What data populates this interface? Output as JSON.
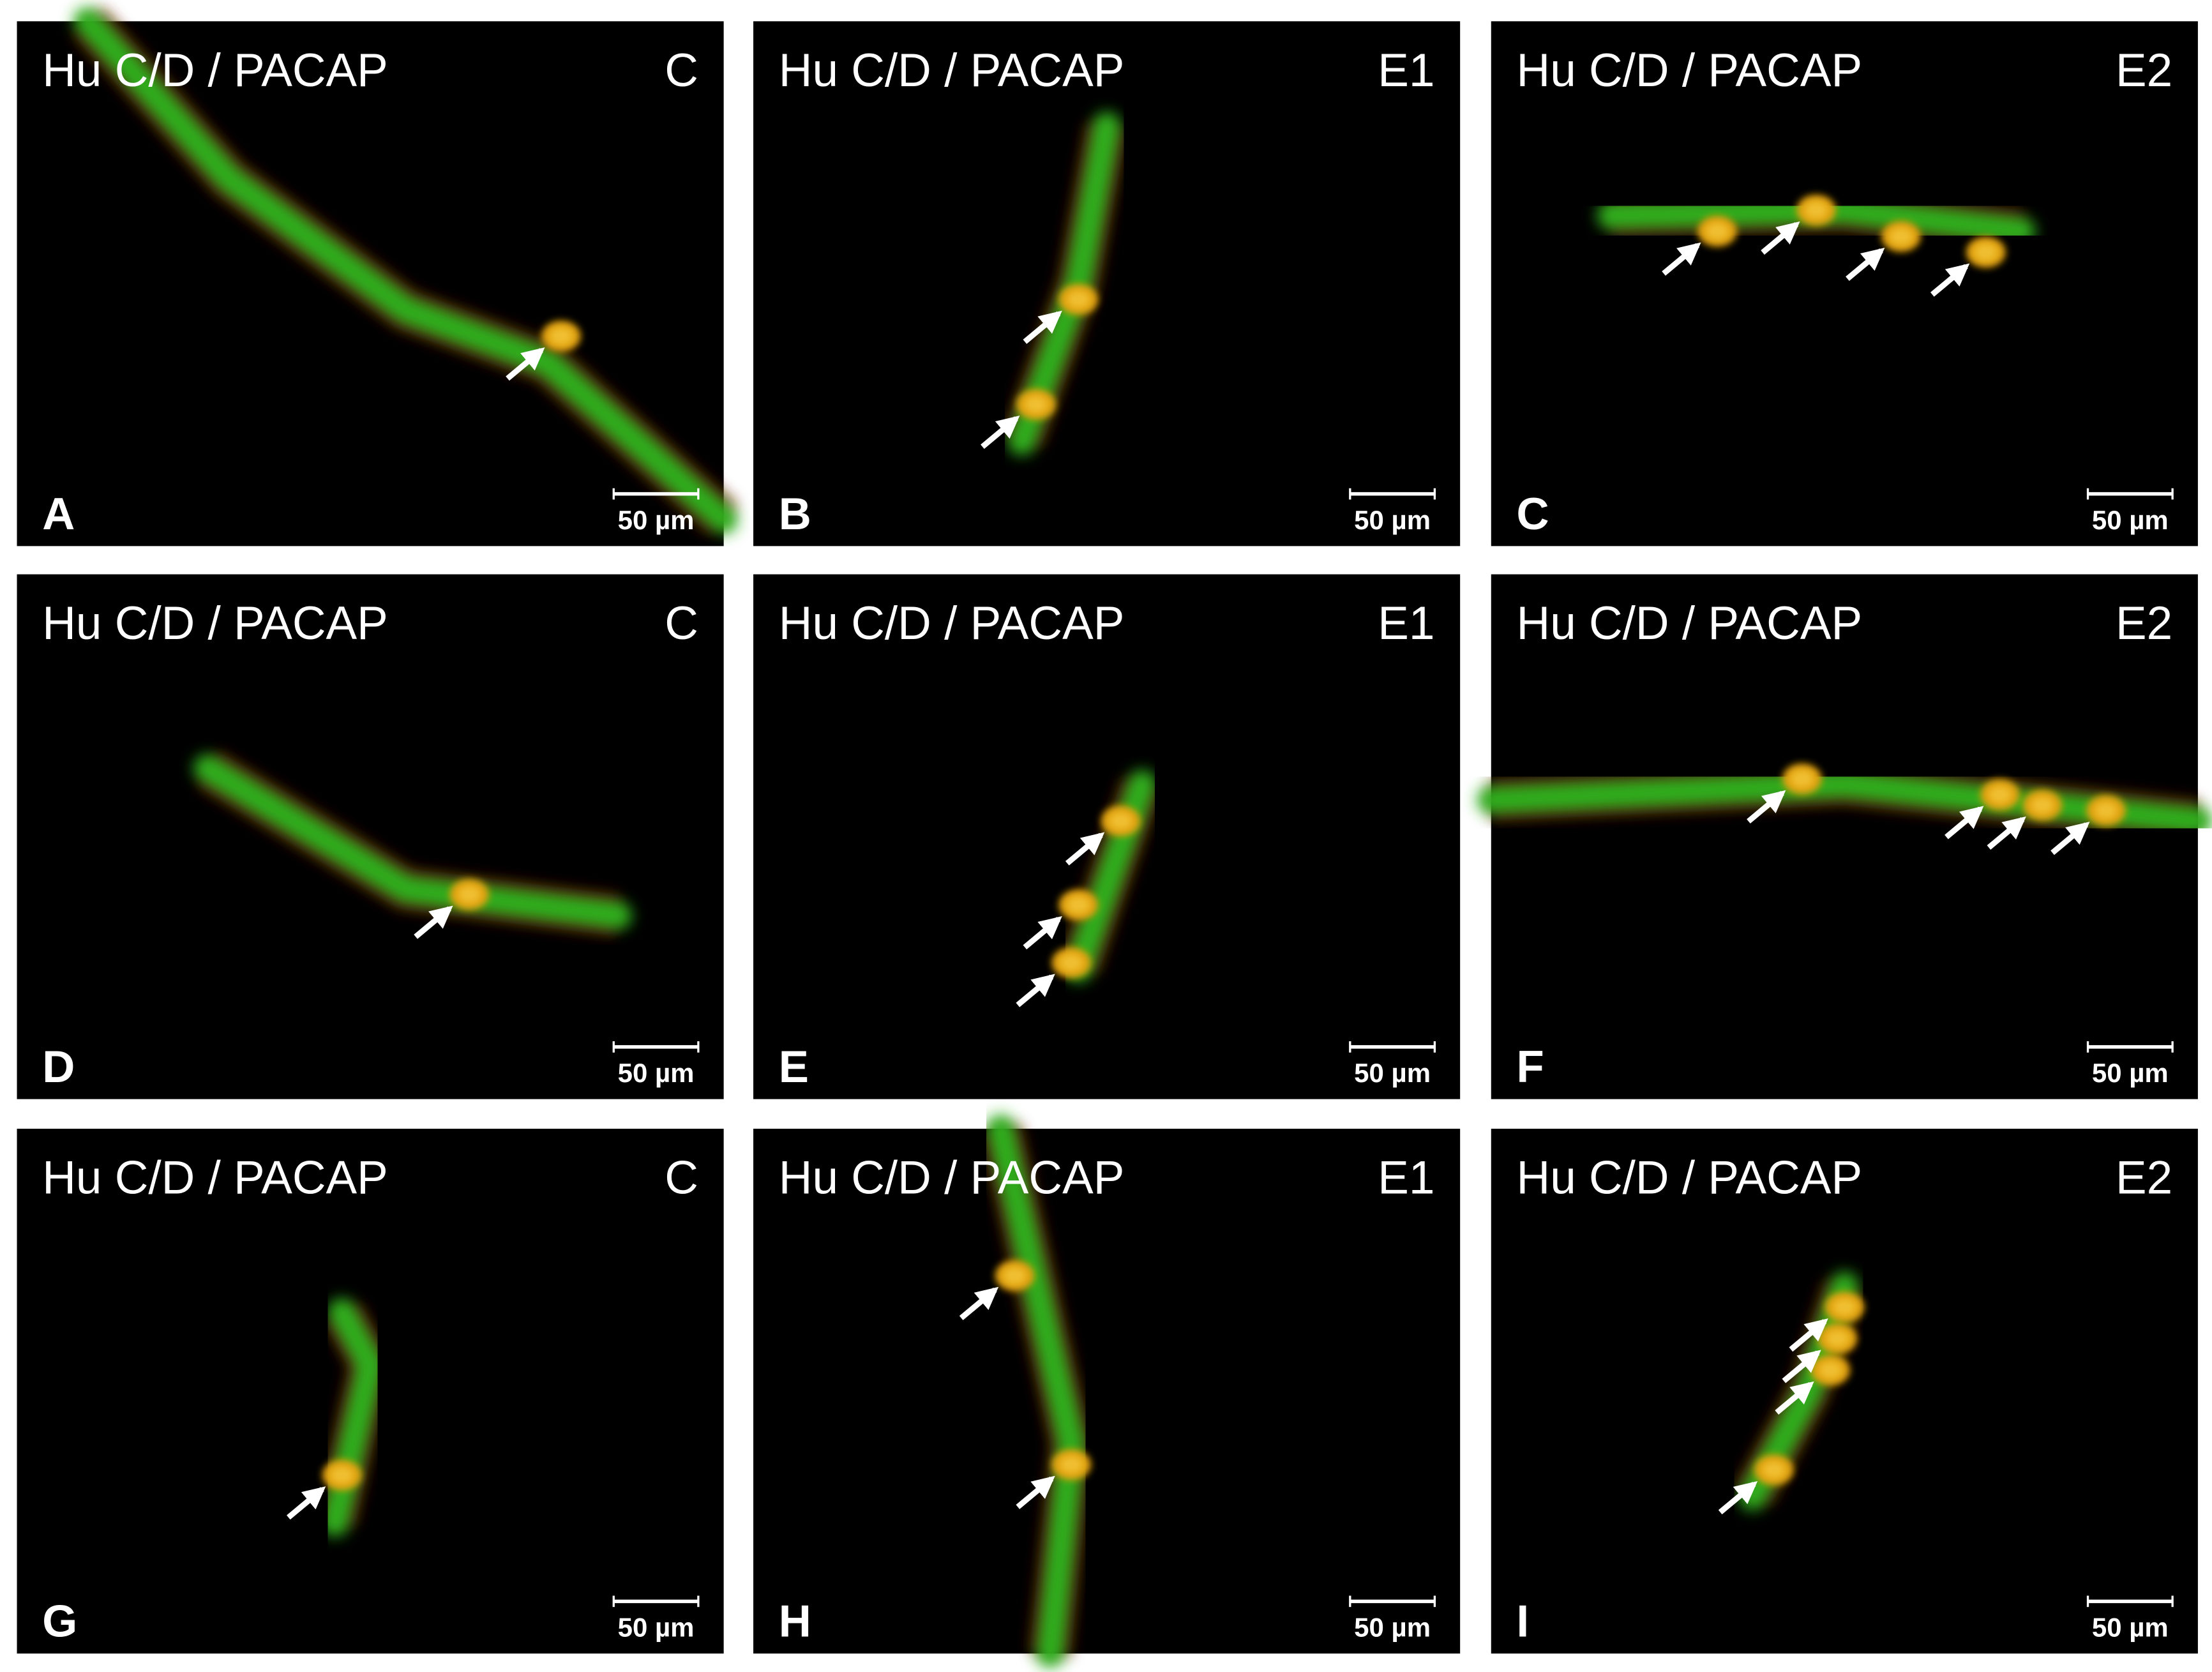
{
  "panels": [
    {
      "stain": "Hu C/D / PACAP",
      "condition": "C",
      "letter": "A",
      "scale_bar": "50 µm"
    },
    {
      "stain": "Hu C/D / PACAP",
      "condition": "E1",
      "letter": "B",
      "scale_bar": "50 µm"
    },
    {
      "stain": "Hu C/D / PACAP",
      "condition": "E2",
      "letter": "C",
      "scale_bar": "50 µm"
    },
    {
      "stain": "Hu C/D / PACAP",
      "condition": "C",
      "letter": "D",
      "scale_bar": "50 µm"
    },
    {
      "stain": "Hu C/D / PACAP",
      "condition": "E1",
      "letter": "E",
      "scale_bar": "50 µm"
    },
    {
      "stain": "Hu C/D / PACAP",
      "condition": "E2",
      "letter": "F",
      "scale_bar": "50 µm"
    },
    {
      "stain": "Hu C/D / PACAP",
      "condition": "C",
      "letter": "G",
      "scale_bar": "50 µm"
    },
    {
      "stain": "Hu C/D / PACAP",
      "condition": "E1",
      "letter": "H",
      "scale_bar": "50 µm"
    },
    {
      "stain": "Hu C/D / PACAP",
      "condition": "E2",
      "letter": "I",
      "scale_bar": "50 µm"
    }
  ]
}
